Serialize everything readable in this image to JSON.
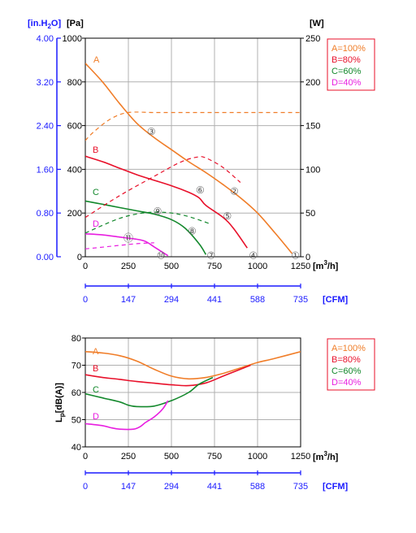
{
  "colors": {
    "A": "#f07d28",
    "B": "#e8102a",
    "C": "#13882c",
    "D": "#e81ee0",
    "axis_blue": "#1a1aff",
    "legend_border": "#e8102a"
  },
  "chart_data": [
    {
      "type": "line",
      "title": "",
      "left_axis_inH2O": {
        "label": "[in.H2O]",
        "ticks": [
          "4.00",
          "3.20",
          "2.40",
          "1.60",
          "0.80",
          "0.00"
        ]
      },
      "left_axis_pa": {
        "label": "[Pa]",
        "ticks": [
          "1000",
          "800",
          "600",
          "400",
          "200",
          "0"
        ],
        "ylim": [
          0,
          1000
        ]
      },
      "right_axis": {
        "label": "[W]",
        "ticks": [
          "250",
          "200",
          "150",
          "100",
          "50",
          "0"
        ],
        "ylim": [
          0,
          250
        ]
      },
      "x_axis": {
        "label": "[m³/h]",
        "ticks": [
          "0",
          "250",
          "500",
          "750",
          "1000",
          "1250"
        ],
        "xlim": [
          0,
          1250
        ]
      },
      "cfm_axis": {
        "label": "[CFM]",
        "ticks": [
          "0",
          "147",
          "294",
          "441",
          "588",
          "735"
        ]
      },
      "grid": true,
      "legend": {
        "position": "top-right",
        "entries": [
          "A=100%",
          "B=80%",
          "C=60%",
          "D=40%"
        ]
      },
      "series": [
        {
          "name": "A",
          "kind": "pressure",
          "x": [
            0,
            100,
            200,
            300,
            400,
            500,
            600,
            700,
            800,
            900,
            1000,
            1100,
            1200
          ],
          "y": [
            885,
            800,
            700,
            610,
            545,
            490,
            435,
            385,
            330,
            270,
            200,
            110,
            15
          ]
        },
        {
          "name": "B",
          "kind": "pressure",
          "x": [
            0,
            100,
            200,
            300,
            400,
            500,
            600,
            660,
            700,
            800,
            860,
            940
          ],
          "y": [
            460,
            435,
            405,
            375,
            350,
            325,
            295,
            270,
            235,
            180,
            130,
            40
          ]
        },
        {
          "name": "C",
          "kind": "pressure",
          "x": [
            0,
            100,
            200,
            300,
            400,
            500,
            580,
            660,
            700
          ],
          "y": [
            255,
            240,
            225,
            210,
            195,
            170,
            130,
            60,
            10
          ]
        },
        {
          "name": "D",
          "kind": "pressure",
          "x": [
            0,
            100,
            200,
            300,
            350,
            400,
            480
          ],
          "y": [
            105,
            100,
            90,
            80,
            70,
            45,
            5
          ]
        },
        {
          "name": "A",
          "kind": "power",
          "x": [
            0,
            50,
            150,
            250,
            400,
            600,
            800,
            1000,
            1250
          ],
          "y": [
            133,
            143,
            158,
            165,
            165,
            165,
            165,
            165,
            165
          ]
        },
        {
          "name": "B",
          "kind": "power",
          "x": [
            0,
            200,
            400,
            550,
            650,
            700,
            800,
            900
          ],
          "y": [
            45,
            70,
            92,
            108,
            114,
            113,
            102,
            85
          ]
        },
        {
          "name": "C",
          "kind": "power",
          "x": [
            0,
            100,
            200,
            300,
            400,
            500,
            600,
            720
          ],
          "y": [
            27,
            36,
            44,
            49,
            51,
            50,
            46,
            38
          ]
        },
        {
          "name": "D",
          "kind": "power",
          "x": [
            0,
            100,
            200,
            300,
            400
          ],
          "y": [
            9,
            11,
            13,
            15,
            16
          ]
        }
      ],
      "curve_labels": [
        "A",
        "B",
        "C",
        "D"
      ],
      "markers": [
        {
          "label": "①",
          "x": 1220,
          "y": 5
        },
        {
          "label": "②",
          "x": 865,
          "y": 300
        },
        {
          "label": "③",
          "x": 383,
          "y": 572
        },
        {
          "label": "④",
          "x": 975,
          "y": 5
        },
        {
          "label": "⑤",
          "x": 825,
          "y": 185
        },
        {
          "label": "⑥",
          "x": 667,
          "y": 305
        },
        {
          "label": "⑦",
          "x": 730,
          "y": 5
        },
        {
          "label": "⑧",
          "x": 620,
          "y": 118
        },
        {
          "label": "⑨",
          "x": 420,
          "y": 208
        },
        {
          "label": "⑩",
          "x": 440,
          "y": 5
        },
        {
          "label": "⑪",
          "x": 250,
          "y": 85
        }
      ]
    },
    {
      "type": "line",
      "title": "",
      "y_axis": {
        "label": "Lp[dB(A)]",
        "ticks": [
          "80",
          "70",
          "60",
          "50",
          "40"
        ],
        "ylim": [
          40,
          80
        ]
      },
      "x_axis": {
        "label": "[m³/h]",
        "ticks": [
          "0",
          "250",
          "500",
          "750",
          "1000",
          "1250"
        ],
        "xlim": [
          0,
          1250
        ]
      },
      "cfm_axis": {
        "label": "[CFM]",
        "ticks": [
          "0",
          "147",
          "294",
          "441",
          "588",
          "735"
        ]
      },
      "grid": true,
      "legend": {
        "position": "top-right",
        "entries": [
          "A=100%",
          "B=80%",
          "C=60%",
          "D=40%"
        ]
      },
      "series": [
        {
          "name": "A",
          "x": [
            0,
            100,
            200,
            300,
            400,
            500,
            600,
            700,
            800,
            900,
            1000,
            1100,
            1250
          ],
          "y": [
            75,
            74.5,
            73.5,
            71.5,
            68.5,
            66,
            65,
            65.5,
            67,
            69,
            71,
            72.5,
            75
          ]
        },
        {
          "name": "B",
          "x": [
            0,
            100,
            200,
            300,
            400,
            500,
            600,
            700,
            800,
            900,
            960
          ],
          "y": [
            66.5,
            65.5,
            64.8,
            64,
            63.4,
            62.8,
            62.5,
            63.5,
            66,
            68.5,
            70
          ]
        },
        {
          "name": "C",
          "x": [
            0,
            100,
            200,
            250,
            300,
            400,
            500,
            600,
            660,
            740
          ],
          "y": [
            59.5,
            58,
            56.5,
            55.3,
            54.8,
            55,
            57,
            60,
            63,
            65.5
          ]
        },
        {
          "name": "D",
          "x": [
            0,
            100,
            150,
            200,
            280,
            320,
            350,
            400,
            450,
            480
          ],
          "y": [
            48.5,
            47.8,
            47,
            46.5,
            46.5,
            47.5,
            49,
            51,
            54,
            57
          ]
        }
      ],
      "curve_labels": [
        "A",
        "B",
        "C",
        "D"
      ]
    }
  ]
}
